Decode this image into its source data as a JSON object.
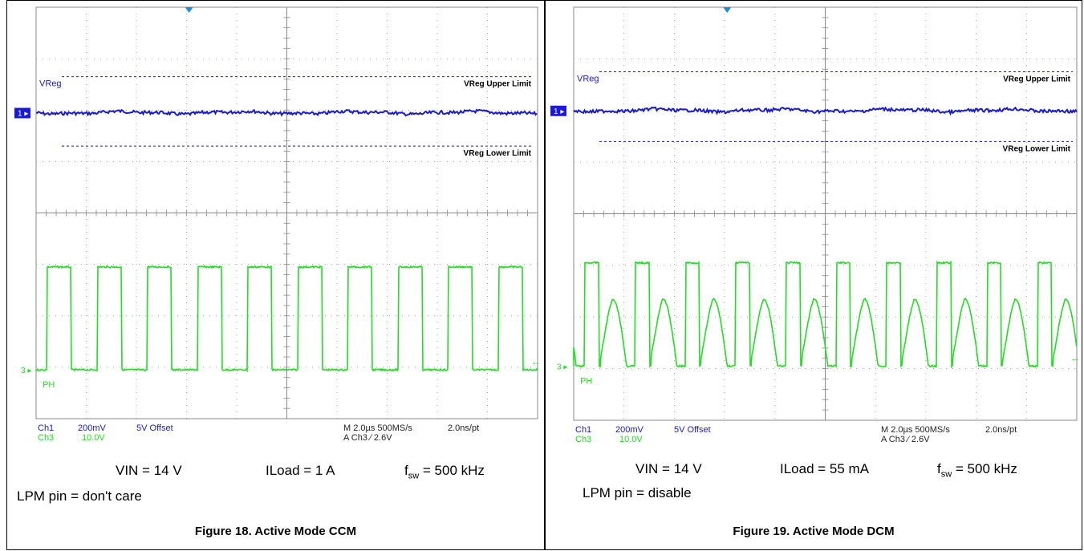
{
  "colors": {
    "ch1": "#1a1ad6",
    "ch3": "#22dd22",
    "grid": "#8a8a8a",
    "marker": "#1a8fd6"
  },
  "figures": [
    {
      "scope": {
        "ch1_label": "Ch1",
        "ch1_scale": "200mV",
        "ch1_offset": "5V Offset",
        "ch3_label": "Ch3",
        "ch3_scale": "10.0V",
        "timebase": "M 2.0µs 500MS/s",
        "sample": "2.0ns/pt",
        "trigger": "A  Ch3  ⁄  2.6V",
        "marker1": "1",
        "marker3": "3",
        "vreg_label": "VReg",
        "upper_label": "VReg Upper Limit",
        "lower_label": "VReg Lower Limit",
        "ph_label": "PH"
      },
      "cond": {
        "vin": "VIN = 14 V",
        "iload": "ILoad = 1 A",
        "fsw_prefix": "f",
        "fsw_sub": "sw",
        "fsw_value": " = 500 kHz",
        "lpm": "LPM pin = don't care"
      },
      "caption": "Figure 18. Active Mode CCM"
    },
    {
      "scope": {
        "ch1_label": "Ch1",
        "ch1_scale": "200mV",
        "ch1_offset": "5V Offset",
        "ch3_label": "Ch3",
        "ch3_scale": "10.0V",
        "timebase": "M 2.0µs 500MS/s",
        "sample": "2.0ns/pt",
        "trigger": "A  Ch3  ⁄  2.6V",
        "marker1": "1",
        "marker3": "3",
        "vreg_label": "VReg",
        "upper_label": "VReg Upper Limit",
        "lower_label": "VReg Lower Limit",
        "ph_label": "PH"
      },
      "cond": {
        "vin": "VIN = 14 V",
        "iload": "ILoad = 55 mA",
        "fsw_prefix": "f",
        "fsw_sub": "sw",
        "fsw_value": " = 500 kHz",
        "lpm": "LPM pin = disable"
      },
      "caption": "Figure 19. Active Mode DCM"
    }
  ],
  "chart_data": [
    {
      "type": "line",
      "mode": "CCM",
      "x_unit": "divisions",
      "xlim": [
        0,
        10
      ],
      "period_div": 1.0,
      "phase_div": 0.22,
      "pulse_width_div": 0.48,
      "series": [
        {
          "name": "VReg",
          "channel": "Ch1",
          "level_div": 5.95
        },
        {
          "name": "PH",
          "channel": "Ch3",
          "high_div": 2.95,
          "low_div": 0.95
        }
      ],
      "limits": {
        "upper_div": 6.65,
        "lower_div": 5.3
      }
    },
    {
      "type": "line",
      "mode": "DCM",
      "x_unit": "divisions",
      "xlim": [
        0,
        10
      ],
      "period_div": 1.0,
      "phase_div": 0.22,
      "pulse_width_div": 0.28,
      "ring_amplitude_div": 1.3,
      "series": [
        {
          "name": "VReg",
          "channel": "Ch1",
          "level_div": 6.0
        },
        {
          "name": "PH",
          "channel": "Ch3",
          "high_div": 3.05,
          "low_div": 1.05
        }
      ],
      "limits": {
        "upper_div": 6.75,
        "lower_div": 5.4
      }
    }
  ]
}
